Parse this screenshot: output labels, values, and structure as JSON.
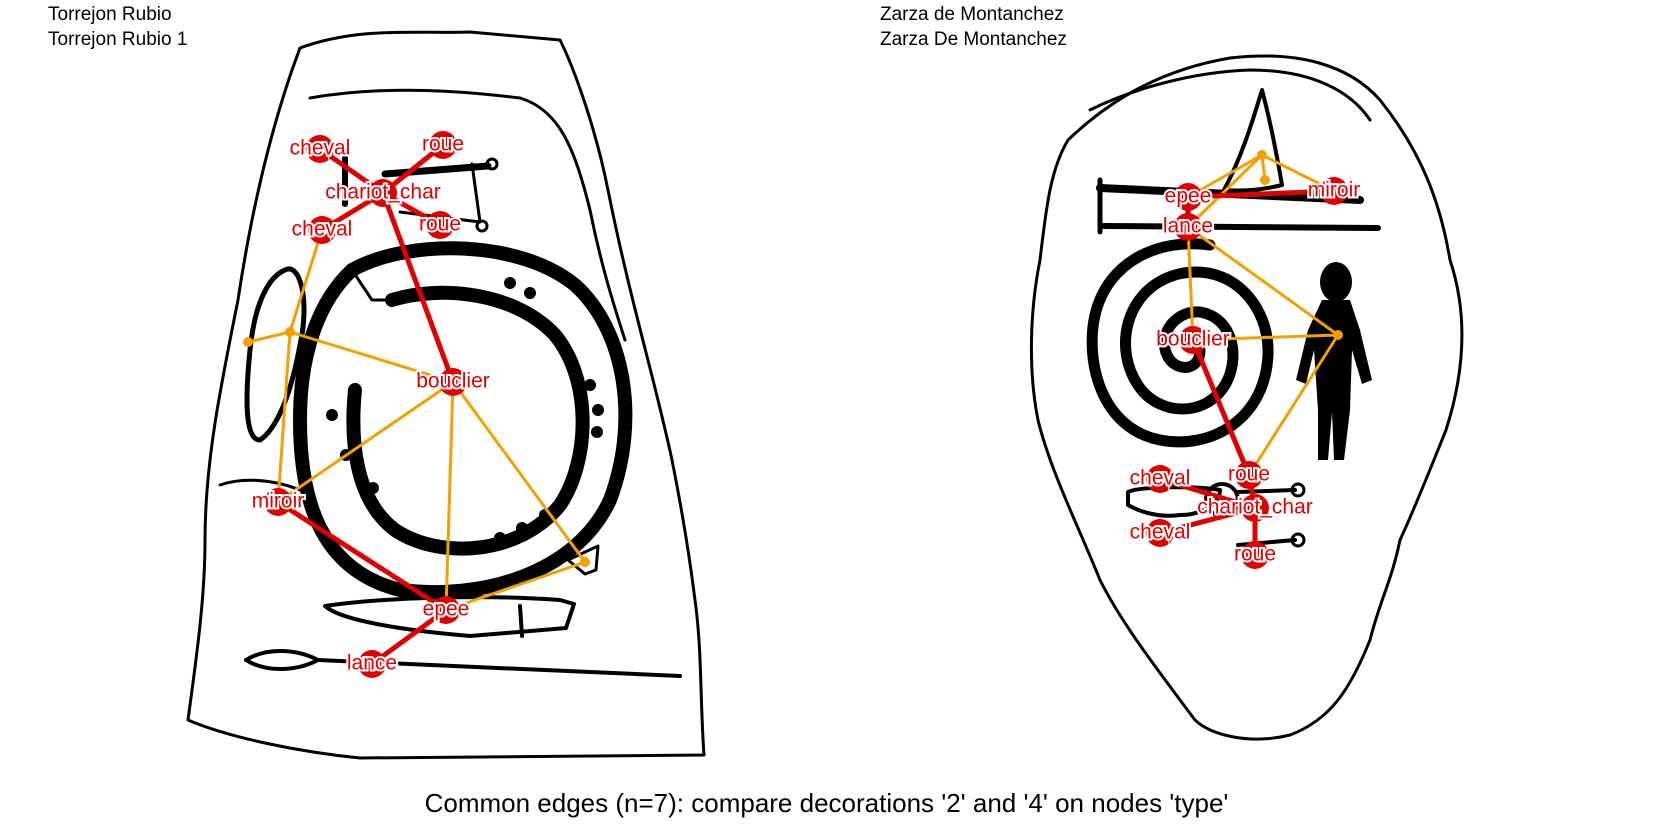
{
  "panels": [
    {
      "site": "Torrejon Rubio",
      "decoration": "Torrejon Rubio 1",
      "nodes": [
        {
          "id": "cheval_a",
          "label": "cheval"
        },
        {
          "id": "roue_a",
          "label": "roue"
        },
        {
          "id": "chariot",
          "label": "chariot_char"
        },
        {
          "id": "cheval_b",
          "label": "cheval"
        },
        {
          "id": "roue_b",
          "label": "roue"
        },
        {
          "id": "bouclier",
          "label": "bouclier"
        },
        {
          "id": "miroir",
          "label": "miroir"
        },
        {
          "id": "epee",
          "label": "epee"
        },
        {
          "id": "lance",
          "label": "lance"
        }
      ]
    },
    {
      "site": "Zarza de Montanchez",
      "decoration": "Zarza De Montanchez",
      "nodes": [
        {
          "id": "epee",
          "label": "epee"
        },
        {
          "id": "miroir",
          "label": "miroir"
        },
        {
          "id": "lance",
          "label": "lance"
        },
        {
          "id": "bouclier",
          "label": "bouclier"
        },
        {
          "id": "cheval_a",
          "label": "cheval"
        },
        {
          "id": "roue_a",
          "label": "roue"
        },
        {
          "id": "chariot",
          "label": "chariot_char"
        },
        {
          "id": "cheval_b",
          "label": "cheval"
        },
        {
          "id": "roue_b",
          "label": "roue"
        }
      ]
    }
  ],
  "caption": "Common edges (n=7): compare decorations '2' and '4' on nodes 'type'",
  "colors": {
    "common_edge": "#e00000",
    "other_edge": "#f5a000",
    "node": "#e00000",
    "label": "#e00000",
    "stele_ink": "#000000"
  }
}
